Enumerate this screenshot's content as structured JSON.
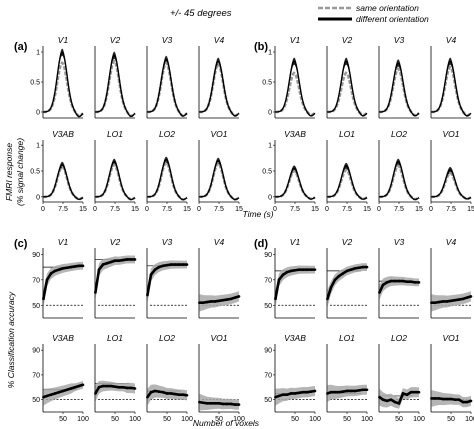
{
  "header": {
    "title": "+/- 45 degrees",
    "legend": [
      {
        "label": "same orientation",
        "style": "dashed",
        "color": "#9a9a9a"
      },
      {
        "label": "different orientation",
        "style": "solid",
        "color": "#000000"
      }
    ]
  },
  "labels": {
    "fmri_ylabel_1": "FMRI response",
    "fmri_ylabel_2": "(% signal change)",
    "time_xlabel": "Time (s)",
    "acc_ylabel": "% Classification accuracy",
    "voxels_xlabel": "Number of voxels"
  },
  "colors": {
    "same": "#9a9a9a",
    "different": "#000000",
    "shading": "#a8a8a8"
  },
  "chart_data": [
    {
      "panel": "(a)",
      "type": "line",
      "xlabel": "Time (s)",
      "ylabel": "FMRI response (% signal change)",
      "xlim": [
        0,
        15
      ],
      "ylim": [
        -0.1,
        1.1
      ],
      "xticks": [
        "0",
        "7.5",
        "15"
      ],
      "yticks": [
        "0",
        "0.5",
        "1"
      ],
      "rois": [
        {
          "name": "V1",
          "peak_different": 1.0,
          "peak_same": 0.82
        },
        {
          "name": "V2",
          "peak_different": 0.95,
          "peak_same": 0.85
        },
        {
          "name": "V3",
          "peak_different": 0.88,
          "peak_same": 0.82
        },
        {
          "name": "V4",
          "peak_different": 0.85,
          "peak_same": 0.8
        },
        {
          "name": "V3AB",
          "peak_different": 0.62,
          "peak_same": 0.58
        },
        {
          "name": "LO1",
          "peak_different": 0.68,
          "peak_same": 0.62
        },
        {
          "name": "LO2",
          "peak_different": 0.72,
          "peak_same": 0.66
        },
        {
          "name": "VO1",
          "peak_different": 0.7,
          "peak_same": 0.65
        }
      ]
    },
    {
      "panel": "(b)",
      "type": "line",
      "xlabel": "Time (s)",
      "ylabel": "FMRI response (% signal change)",
      "xlim": [
        0,
        15
      ],
      "ylim": [
        -0.1,
        1.1
      ],
      "xticks": [
        "0",
        "7.5",
        "15"
      ],
      "yticks": [
        "0",
        "0.5",
        "1"
      ],
      "rois": [
        {
          "name": "V1",
          "peak_different": 0.85,
          "peak_same": 0.65
        },
        {
          "name": "V2",
          "peak_different": 0.85,
          "peak_same": 0.65
        },
        {
          "name": "V3",
          "peak_different": 0.82,
          "peak_same": 0.72
        },
        {
          "name": "V4",
          "peak_different": 0.85,
          "peak_same": 0.75
        },
        {
          "name": "V3AB",
          "peak_different": 0.55,
          "peak_same": 0.5
        },
        {
          "name": "LO1",
          "peak_different": 0.6,
          "peak_same": 0.52
        },
        {
          "name": "LO2",
          "peak_different": 0.68,
          "peak_same": 0.6
        },
        {
          "name": "VO1",
          "peak_different": 0.52,
          "peak_same": 0.46
        }
      ]
    },
    {
      "panel": "(c)",
      "type": "line",
      "xlabel": "Number of voxels",
      "ylabel": "% Classification accuracy",
      "xlim": [
        0,
        100
      ],
      "ylim": [
        40,
        95
      ],
      "xticks": [
        "50",
        "100"
      ],
      "yticks": [
        "50",
        "70",
        "90"
      ],
      "chance": 50,
      "rois": [
        {
          "name": "V1",
          "x": [
            1,
            10,
            20,
            30,
            40,
            50,
            60,
            70,
            80,
            90,
            100
          ],
          "y": [
            55,
            70,
            75,
            77,
            78,
            79,
            79.5,
            80,
            80.5,
            81,
            81
          ],
          "asymptote": 80
        },
        {
          "name": "V2",
          "x": [
            1,
            10,
            20,
            30,
            40,
            50,
            60,
            70,
            80,
            90,
            100
          ],
          "y": [
            60,
            78,
            82,
            83,
            84,
            85,
            85,
            85.5,
            86,
            86,
            86
          ],
          "asymptote": 86
        },
        {
          "name": "V3",
          "x": [
            1,
            10,
            20,
            30,
            40,
            50,
            60,
            70,
            80,
            90,
            100
          ],
          "y": [
            58,
            74,
            78,
            80,
            81,
            81.5,
            82,
            82,
            82,
            82,
            82
          ],
          "asymptote": 81
        },
        {
          "name": "V4",
          "x": [
            1,
            10,
            20,
            30,
            40,
            50,
            60,
            70,
            80,
            90,
            100
          ],
          "y": [
            52,
            52,
            52.5,
            53,
            53,
            53.5,
            54,
            54.5,
            55,
            56,
            57
          ],
          "asymptote": null
        },
        {
          "name": "V3AB",
          "x": [
            1,
            10,
            20,
            30,
            40,
            50,
            60,
            70,
            80,
            90,
            100
          ],
          "y": [
            52,
            53,
            54,
            55,
            56,
            57,
            58,
            59,
            60,
            61,
            62
          ],
          "asymptote": 58
        },
        {
          "name": "LO1",
          "x": [
            1,
            10,
            20,
            30,
            40,
            50,
            60,
            70,
            80,
            90,
            100
          ],
          "y": [
            55,
            60,
            61,
            61,
            61,
            60.5,
            60,
            60,
            59.5,
            59.5,
            59
          ],
          "asymptote": 63
        },
        {
          "name": "LO2",
          "x": [
            1,
            10,
            20,
            30,
            40,
            50,
            60,
            70,
            80,
            90,
            100
          ],
          "y": [
            52,
            56,
            57,
            56.5,
            56,
            55,
            55,
            54.5,
            54,
            54,
            53.5
          ],
          "asymptote": 57
        },
        {
          "name": "VO1",
          "x": [
            1,
            10,
            20,
            30,
            40,
            50,
            60,
            70,
            80,
            90,
            100
          ],
          "y": [
            48,
            47.5,
            47,
            47,
            47,
            47,
            46.5,
            46.5,
            46.5,
            46,
            46
          ],
          "asymptote": null
        }
      ]
    },
    {
      "panel": "(d)",
      "type": "line",
      "xlabel": "Number of voxels",
      "ylabel": "% Classification accuracy",
      "xlim": [
        0,
        100
      ],
      "ylim": [
        40,
        95
      ],
      "xticks": [
        "50",
        "100"
      ],
      "yticks": [
        "50",
        "70",
        "90"
      ],
      "chance": 50,
      "rois": [
        {
          "name": "V1",
          "x": [
            1,
            10,
            20,
            30,
            40,
            50,
            60,
            70,
            80,
            90,
            100
          ],
          "y": [
            55,
            70,
            74,
            76,
            77,
            77.5,
            78,
            78,
            78,
            78,
            78
          ],
          "asymptote": 77
        },
        {
          "name": "V2",
          "x": [
            1,
            10,
            20,
            30,
            40,
            50,
            60,
            70,
            80,
            90,
            100
          ],
          "y": [
            55,
            64,
            70,
            73,
            75,
            77,
            78,
            79,
            79.5,
            80,
            80
          ],
          "asymptote": 77
        },
        {
          "name": "V3",
          "x": [
            1,
            10,
            20,
            30,
            40,
            50,
            60,
            70,
            80,
            90,
            100
          ],
          "y": [
            60,
            66,
            68,
            69,
            69,
            69,
            69,
            68.5,
            68.5,
            68,
            68
          ],
          "asymptote": 69
        },
        {
          "name": "V4",
          "x": [
            1,
            10,
            20,
            30,
            40,
            50,
            60,
            70,
            80,
            90,
            100
          ],
          "y": [
            52,
            52,
            52.5,
            53,
            53,
            53.5,
            54,
            54.5,
            55,
            56,
            57
          ],
          "asymptote": null
        },
        {
          "name": "V3AB",
          "x": [
            1,
            10,
            20,
            30,
            40,
            50,
            60,
            70,
            80,
            90,
            100
          ],
          "y": [
            52,
            53,
            54,
            54,
            55,
            55,
            55.5,
            56,
            56,
            56.5,
            57
          ],
          "asymptote": 55
        },
        {
          "name": "LO1",
          "x": [
            1,
            10,
            20,
            30,
            40,
            50,
            60,
            70,
            80,
            90,
            100
          ],
          "y": [
            55,
            56,
            56,
            56,
            56.5,
            57,
            57,
            57,
            57.5,
            58,
            58
          ],
          "asymptote": 55
        },
        {
          "name": "LO2",
          "x": [
            1,
            10,
            20,
            30,
            40,
            50,
            60,
            70,
            80,
            90,
            100
          ],
          "y": [
            52,
            50,
            49,
            50,
            48,
            47,
            55,
            54,
            56,
            56,
            56
          ],
          "asymptote": 53
        },
        {
          "name": "VO1",
          "x": [
            1,
            10,
            20,
            30,
            40,
            50,
            60,
            70,
            80,
            90,
            100
          ],
          "y": [
            51,
            51,
            51,
            50.5,
            50.5,
            50.5,
            50,
            50,
            48,
            48,
            49
          ],
          "asymptote": null
        }
      ]
    }
  ]
}
